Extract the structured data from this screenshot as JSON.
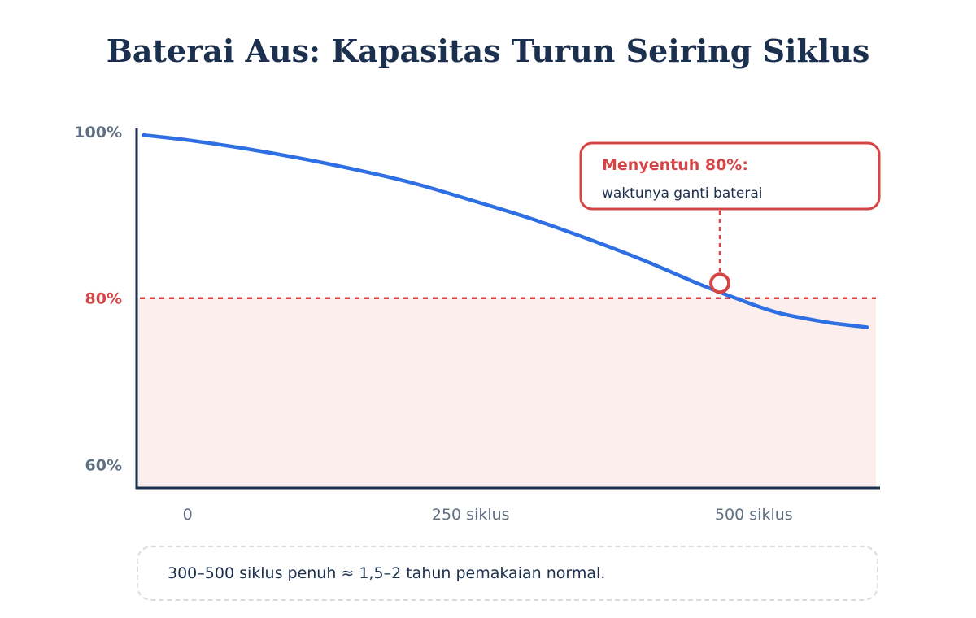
{
  "chart_data": {
    "type": "line",
    "title": "Baterai Aus: Kapasitas Turun Seiring Siklus",
    "xlabel": "",
    "ylabel": "",
    "x_ticks": [
      {
        "value": 0,
        "label": "0"
      },
      {
        "value": 250,
        "label": "250 siklus"
      },
      {
        "value": 500,
        "label": "500 siklus"
      }
    ],
    "y_ticks": [
      {
        "value": 100,
        "label": "100%",
        "highlight": false
      },
      {
        "value": 80,
        "label": "80%",
        "highlight": true
      },
      {
        "value": 60,
        "label": "60%",
        "highlight": false
      }
    ],
    "xlim": [
      -45,
      610
    ],
    "ylim": [
      57.2,
      100.2
    ],
    "series": [
      {
        "color": "#2f6fe4",
        "x": [
          -39,
          0,
          50,
          100,
          150,
          200,
          250,
          300,
          350,
          400,
          450,
          480,
          520,
          560,
          575,
          600
        ],
        "y": [
          99.6,
          99.0,
          98.0,
          96.8,
          95.4,
          93.8,
          91.8,
          89.7,
          87.3,
          84.7,
          81.8,
          80.2,
          78.3,
          77.2,
          76.9,
          76.5
        ]
      }
    ],
    "threshold": {
      "value": 80,
      "color": "#d64545",
      "style": "dashed",
      "fill_below": "#fdeeee"
    },
    "marker": {
      "x": 470,
      "y": 81.8,
      "color": "#d64545"
    },
    "callout": {
      "title": "Menyentuh 80%:",
      "text": "waktunya ganti baterai",
      "color": "#d64545"
    }
  },
  "note": {
    "text": "300–500 siklus penuh ≈ 1,5–2 tahun pemakaian normal."
  },
  "colors": {
    "axis": "#1b2f4e",
    "title": "#1b2f4e",
    "tick": "#5f6f82"
  }
}
